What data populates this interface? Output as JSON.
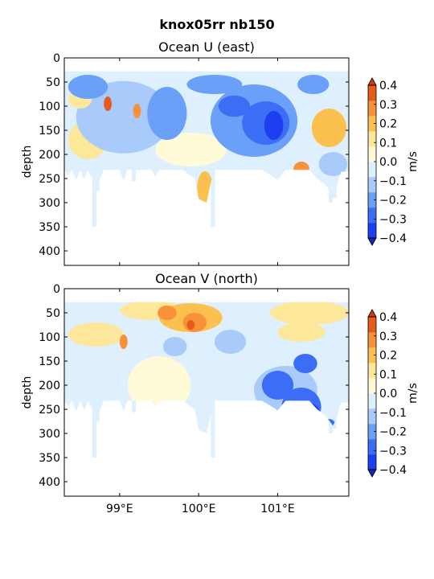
{
  "suptitle": "knox05rr nb150",
  "colors": {
    "levels": [
      "#1e3ff0",
      "#3b6ef5",
      "#6aa0f7",
      "#a8cbfb",
      "#def0fd",
      "#fffbd8",
      "#fde79a",
      "#fcc04f",
      "#f8913a",
      "#e85a1c"
    ],
    "under": "#1326c8",
    "over": "#d63b0c"
  },
  "chart_data": [
    {
      "type": "heatmap",
      "title": "Ocean U (east)",
      "ylabel": "depth",
      "ylim": [
        430,
        0
      ],
      "yticks": [
        0,
        50,
        100,
        150,
        200,
        250,
        300,
        350,
        400
      ],
      "xlim": [
        98.3,
        101.9
      ],
      "xticks": [
        99,
        100,
        101
      ],
      "xtick_labels": [
        "99°E",
        "100°E",
        "101°E"
      ],
      "show_xtick_labels": false,
      "colorbar": {
        "label": "m/s",
        "levels": [
          -0.4,
          -0.3,
          -0.2,
          -0.1,
          0.0,
          0.1,
          0.2,
          0.3,
          0.4
        ],
        "tick_labels": [
          "0.4",
          "0.3",
          "0.2",
          "0.1",
          "0.0",
          "−0.1",
          "−0.2",
          "−0.3",
          "−0.4"
        ]
      },
      "data_top_depth": 28,
      "bottom_depth_profile": [
        [
          98.3,
          232
        ],
        [
          98.35,
          244
        ],
        [
          98.4,
          232
        ],
        [
          98.45,
          254
        ],
        [
          98.5,
          232
        ],
        [
          98.55,
          252
        ],
        [
          98.6,
          232
        ],
        [
          98.65,
          250
        ],
        [
          98.7,
          232
        ],
        [
          98.75,
          252
        ],
        [
          98.8,
          232
        ],
        [
          98.9,
          232
        ],
        [
          99.0,
          232
        ],
        [
          99.05,
          254
        ],
        [
          99.1,
          232
        ],
        [
          99.2,
          232
        ],
        [
          99.4,
          232
        ],
        [
          99.45,
          246
        ],
        [
          99.5,
          232
        ],
        [
          99.6,
          232
        ],
        [
          99.8,
          232
        ],
        [
          99.95,
          250
        ],
        [
          100.0,
          292
        ],
        [
          100.1,
          300
        ],
        [
          100.15,
          262
        ],
        [
          100.2,
          232
        ],
        [
          100.4,
          232
        ],
        [
          100.6,
          232
        ],
        [
          100.8,
          232
        ],
        [
          101.0,
          252
        ],
        [
          101.1,
          232
        ],
        [
          101.4,
          232
        ],
        [
          101.5,
          250
        ],
        [
          101.6,
          262
        ],
        [
          101.7,
          284
        ],
        [
          101.75,
          266
        ],
        [
          101.8,
          236
        ],
        [
          101.9,
          236
        ]
      ],
      "spikes": [
        [
          98.68,
          350
        ],
        [
          98.72,
          276
        ],
        [
          99.18,
          256
        ],
        [
          100.18,
          350
        ],
        [
          101.67,
          300
        ],
        [
          101.72,
          290
        ]
      ],
      "blobs": [
        {
          "x": 99.05,
          "y": 123,
          "rx": 0.6,
          "ry": 75,
          "v": -0.12
        },
        {
          "x": 99.6,
          "y": 115,
          "rx": 0.25,
          "ry": 55,
          "v": -0.18
        },
        {
          "x": 100.7,
          "y": 130,
          "rx": 0.55,
          "ry": 75,
          "v": -0.22
        },
        {
          "x": 100.85,
          "y": 135,
          "rx": 0.3,
          "ry": 45,
          "v": -0.3
        },
        {
          "x": 100.95,
          "y": 140,
          "rx": 0.12,
          "ry": 30,
          "v": -0.38
        },
        {
          "x": 100.45,
          "y": 100,
          "rx": 0.2,
          "ry": 22,
          "v": -0.26
        },
        {
          "x": 100.2,
          "y": 55,
          "rx": 0.35,
          "ry": 20,
          "v": -0.22
        },
        {
          "x": 98.6,
          "y": 60,
          "rx": 0.25,
          "ry": 25,
          "v": -0.22
        },
        {
          "x": 99.9,
          "y": 190,
          "rx": 0.45,
          "ry": 35,
          "v": 0.06
        },
        {
          "x": 98.6,
          "y": 170,
          "rx": 0.25,
          "ry": 40,
          "v": 0.08
        },
        {
          "x": 98.5,
          "y": 85,
          "rx": 0.15,
          "ry": 20,
          "v": 0.15
        },
        {
          "x": 100.08,
          "y": 270,
          "rx": 0.1,
          "ry": 35,
          "v": 0.16
        },
        {
          "x": 101.65,
          "y": 145,
          "rx": 0.22,
          "ry": 40,
          "v": 0.16
        },
        {
          "x": 101.3,
          "y": 230,
          "rx": 0.1,
          "ry": 15,
          "v": 0.25
        },
        {
          "x": 99.22,
          "y": 110,
          "rx": 0.05,
          "ry": 15,
          "v": 0.25
        },
        {
          "x": 98.85,
          "y": 95,
          "rx": 0.05,
          "ry": 15,
          "v": 0.32
        },
        {
          "x": 101.45,
          "y": 55,
          "rx": 0.2,
          "ry": 20,
          "v": -0.2
        },
        {
          "x": 101.7,
          "y": 220,
          "rx": 0.18,
          "ry": 25,
          "v": -0.12
        }
      ]
    },
    {
      "type": "heatmap",
      "title": "Ocean V (north)",
      "ylabel": "depth",
      "ylim": [
        430,
        0
      ],
      "yticks": [
        0,
        50,
        100,
        150,
        200,
        250,
        300,
        350,
        400
      ],
      "xlim": [
        98.3,
        101.9
      ],
      "xticks": [
        99,
        100,
        101
      ],
      "xtick_labels": [
        "99°E",
        "100°E",
        "101°E"
      ],
      "show_xtick_labels": true,
      "colorbar": {
        "label": "m/s",
        "levels": [
          -0.4,
          -0.3,
          -0.2,
          -0.1,
          0.0,
          0.1,
          0.2,
          0.3,
          0.4
        ],
        "tick_labels": [
          "0.4",
          "0.3",
          "0.2",
          "0.1",
          "0.0",
          "−0.1",
          "−0.2",
          "−0.3",
          "−0.4"
        ]
      },
      "data_top_depth": 28,
      "bottom_depth_profile": [
        [
          98.3,
          232
        ],
        [
          98.35,
          244
        ],
        [
          98.4,
          232
        ],
        [
          98.45,
          254
        ],
        [
          98.5,
          232
        ],
        [
          98.55,
          252
        ],
        [
          98.6,
          232
        ],
        [
          98.65,
          250
        ],
        [
          98.7,
          232
        ],
        [
          98.75,
          252
        ],
        [
          98.8,
          232
        ],
        [
          98.9,
          232
        ],
        [
          99.0,
          232
        ],
        [
          99.05,
          254
        ],
        [
          99.1,
          232
        ],
        [
          99.2,
          232
        ],
        [
          99.4,
          232
        ],
        [
          99.45,
          246
        ],
        [
          99.5,
          232
        ],
        [
          99.6,
          232
        ],
        [
          99.8,
          232
        ],
        [
          99.95,
          250
        ],
        [
          100.0,
          292
        ],
        [
          100.1,
          300
        ],
        [
          100.15,
          262
        ],
        [
          100.2,
          232
        ],
        [
          100.4,
          232
        ],
        [
          100.6,
          232
        ],
        [
          100.8,
          232
        ],
        [
          101.0,
          252
        ],
        [
          101.1,
          232
        ],
        [
          101.4,
          232
        ],
        [
          101.5,
          250
        ],
        [
          101.6,
          262
        ],
        [
          101.7,
          284
        ],
        [
          101.75,
          266
        ],
        [
          101.8,
          236
        ],
        [
          101.9,
          236
        ]
      ],
      "spikes": [
        [
          98.68,
          350
        ],
        [
          98.72,
          276
        ],
        [
          99.18,
          256
        ],
        [
          100.18,
          350
        ],
        [
          101.67,
          300
        ],
        [
          101.72,
          290
        ]
      ],
      "blobs": [
        {
          "x": 99.4,
          "y": 45,
          "rx": 0.4,
          "ry": 20,
          "v": 0.15
        },
        {
          "x": 99.9,
          "y": 60,
          "rx": 0.4,
          "ry": 30,
          "v": 0.2
        },
        {
          "x": 99.6,
          "y": 50,
          "rx": 0.12,
          "ry": 15,
          "v": 0.27
        },
        {
          "x": 99.95,
          "y": 70,
          "rx": 0.15,
          "ry": 20,
          "v": 0.3
        },
        {
          "x": 99.9,
          "y": 75,
          "rx": 0.05,
          "ry": 10,
          "v": 0.38
        },
        {
          "x": 98.7,
          "y": 95,
          "rx": 0.35,
          "ry": 25,
          "v": 0.12
        },
        {
          "x": 101.4,
          "y": 50,
          "rx": 0.5,
          "ry": 25,
          "v": 0.12
        },
        {
          "x": 101.3,
          "y": 90,
          "rx": 0.3,
          "ry": 20,
          "v": 0.15
        },
        {
          "x": 98.7,
          "y": 160,
          "rx": 0.35,
          "ry": 70,
          "v": -0.05
        },
        {
          "x": 99.5,
          "y": 200,
          "rx": 0.4,
          "ry": 60,
          "v": 0.05
        },
        {
          "x": 100.6,
          "y": 150,
          "rx": 0.5,
          "ry": 60,
          "v": -0.08
        },
        {
          "x": 101.1,
          "y": 210,
          "rx": 0.4,
          "ry": 50,
          "v": -0.15
        },
        {
          "x": 101.0,
          "y": 200,
          "rx": 0.2,
          "ry": 30,
          "v": -0.28
        },
        {
          "x": 101.35,
          "y": 155,
          "rx": 0.15,
          "ry": 20,
          "v": -0.25
        },
        {
          "x": 101.3,
          "y": 245,
          "rx": 0.25,
          "ry": 40,
          "v": -0.3
        },
        {
          "x": 101.38,
          "y": 258,
          "rx": 0.15,
          "ry": 22,
          "v": -0.38
        },
        {
          "x": 101.65,
          "y": 290,
          "rx": 0.1,
          "ry": 20,
          "v": -0.3
        },
        {
          "x": 99.7,
          "y": 120,
          "rx": 0.15,
          "ry": 20,
          "v": -0.15
        },
        {
          "x": 100.4,
          "y": 110,
          "rx": 0.2,
          "ry": 25,
          "v": -0.15
        },
        {
          "x": 99.05,
          "y": 110,
          "rx": 0.05,
          "ry": 15,
          "v": 0.27
        }
      ]
    }
  ]
}
